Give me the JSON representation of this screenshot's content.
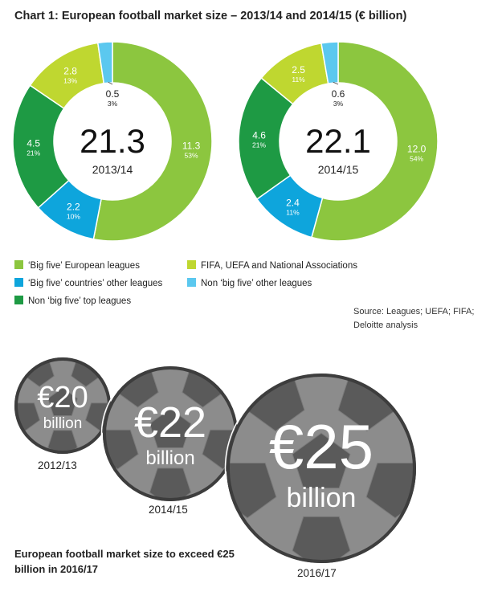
{
  "title": "Chart 1: European football market size – 2013/14 and 2014/15 (€ billion)",
  "chart_data": [
    {
      "type": "pie",
      "subtype": "donut",
      "center_value": "21.3",
      "center_label": "2013/14",
      "slices": [
        {
          "category": "'Big five' European leagues",
          "value": 11.3,
          "percent": "53%",
          "value_label": "11.3"
        },
        {
          "category": "'Big five' countries' other leagues",
          "value": 2.2,
          "percent": "10%",
          "value_label": "2.2"
        },
        {
          "category": "Non 'big five' top leagues",
          "value": 4.5,
          "percent": "21%",
          "value_label": "4.5"
        },
        {
          "category": "FIFA, UEFA and National Associations",
          "value": 2.8,
          "percent": "13%",
          "value_label": "2.8"
        },
        {
          "category": "Non 'big five' other leagues",
          "value": 0.5,
          "percent": "3%",
          "value_label": "0.5"
        }
      ]
    },
    {
      "type": "pie",
      "subtype": "donut",
      "center_value": "22.1",
      "center_label": "2014/15",
      "slices": [
        {
          "category": "'Big five' European leagues",
          "value": 12.0,
          "percent": "54%",
          "value_label": "12.0"
        },
        {
          "category": "'Big five' countries' other leagues",
          "value": 2.4,
          "percent": "11%",
          "value_label": "2.4"
        },
        {
          "category": "Non 'big five' top leagues",
          "value": 4.6,
          "percent": "21%",
          "value_label": "4.6"
        },
        {
          "category": "FIFA, UEFA and National Associations",
          "value": 2.5,
          "percent": "11%",
          "value_label": "2.5"
        },
        {
          "category": "Non 'big five' other leagues",
          "value": 0.6,
          "percent": "3%",
          "value_label": "0.6"
        }
      ]
    }
  ],
  "colors": {
    "big_five": "#8cc63f",
    "big_five_other": "#0ea5dc",
    "non_big_five_top": "#1e9a44",
    "fifa_uefa": "#bfd730",
    "non_big_five_other": "#5bc8ef",
    "ball_fill": "#8c8c8c",
    "ball_patch": "#5a5a5a",
    "ball_border": "#3d3d3d"
  },
  "legend": [
    {
      "label": "‘Big five’ European leagues",
      "color": "#8cc63f"
    },
    {
      "label": "FIFA, UEFA and National Associations",
      "color": "#bfd730"
    },
    {
      "label": "‘Big five’ countries’ other leagues",
      "color": "#0ea5dc"
    },
    {
      "label": "Non ‘big five’ other leagues",
      "color": "#5bc8ef"
    },
    {
      "label": "Non ‘big five’ top leagues",
      "color": "#1e9a44"
    }
  ],
  "source": "Source: Leagues; UEFA; FIFA; Deloitte analysis",
  "balls": [
    {
      "amount": "€20",
      "unit": "billion",
      "year": "2012/13"
    },
    {
      "amount": "€22",
      "unit": "billion",
      "year": "2014/15"
    },
    {
      "amount": "€25",
      "unit": "billion",
      "year": "2016/17"
    }
  ],
  "bottom_caption": "European football market size to exceed €25 billion in 2016/17"
}
